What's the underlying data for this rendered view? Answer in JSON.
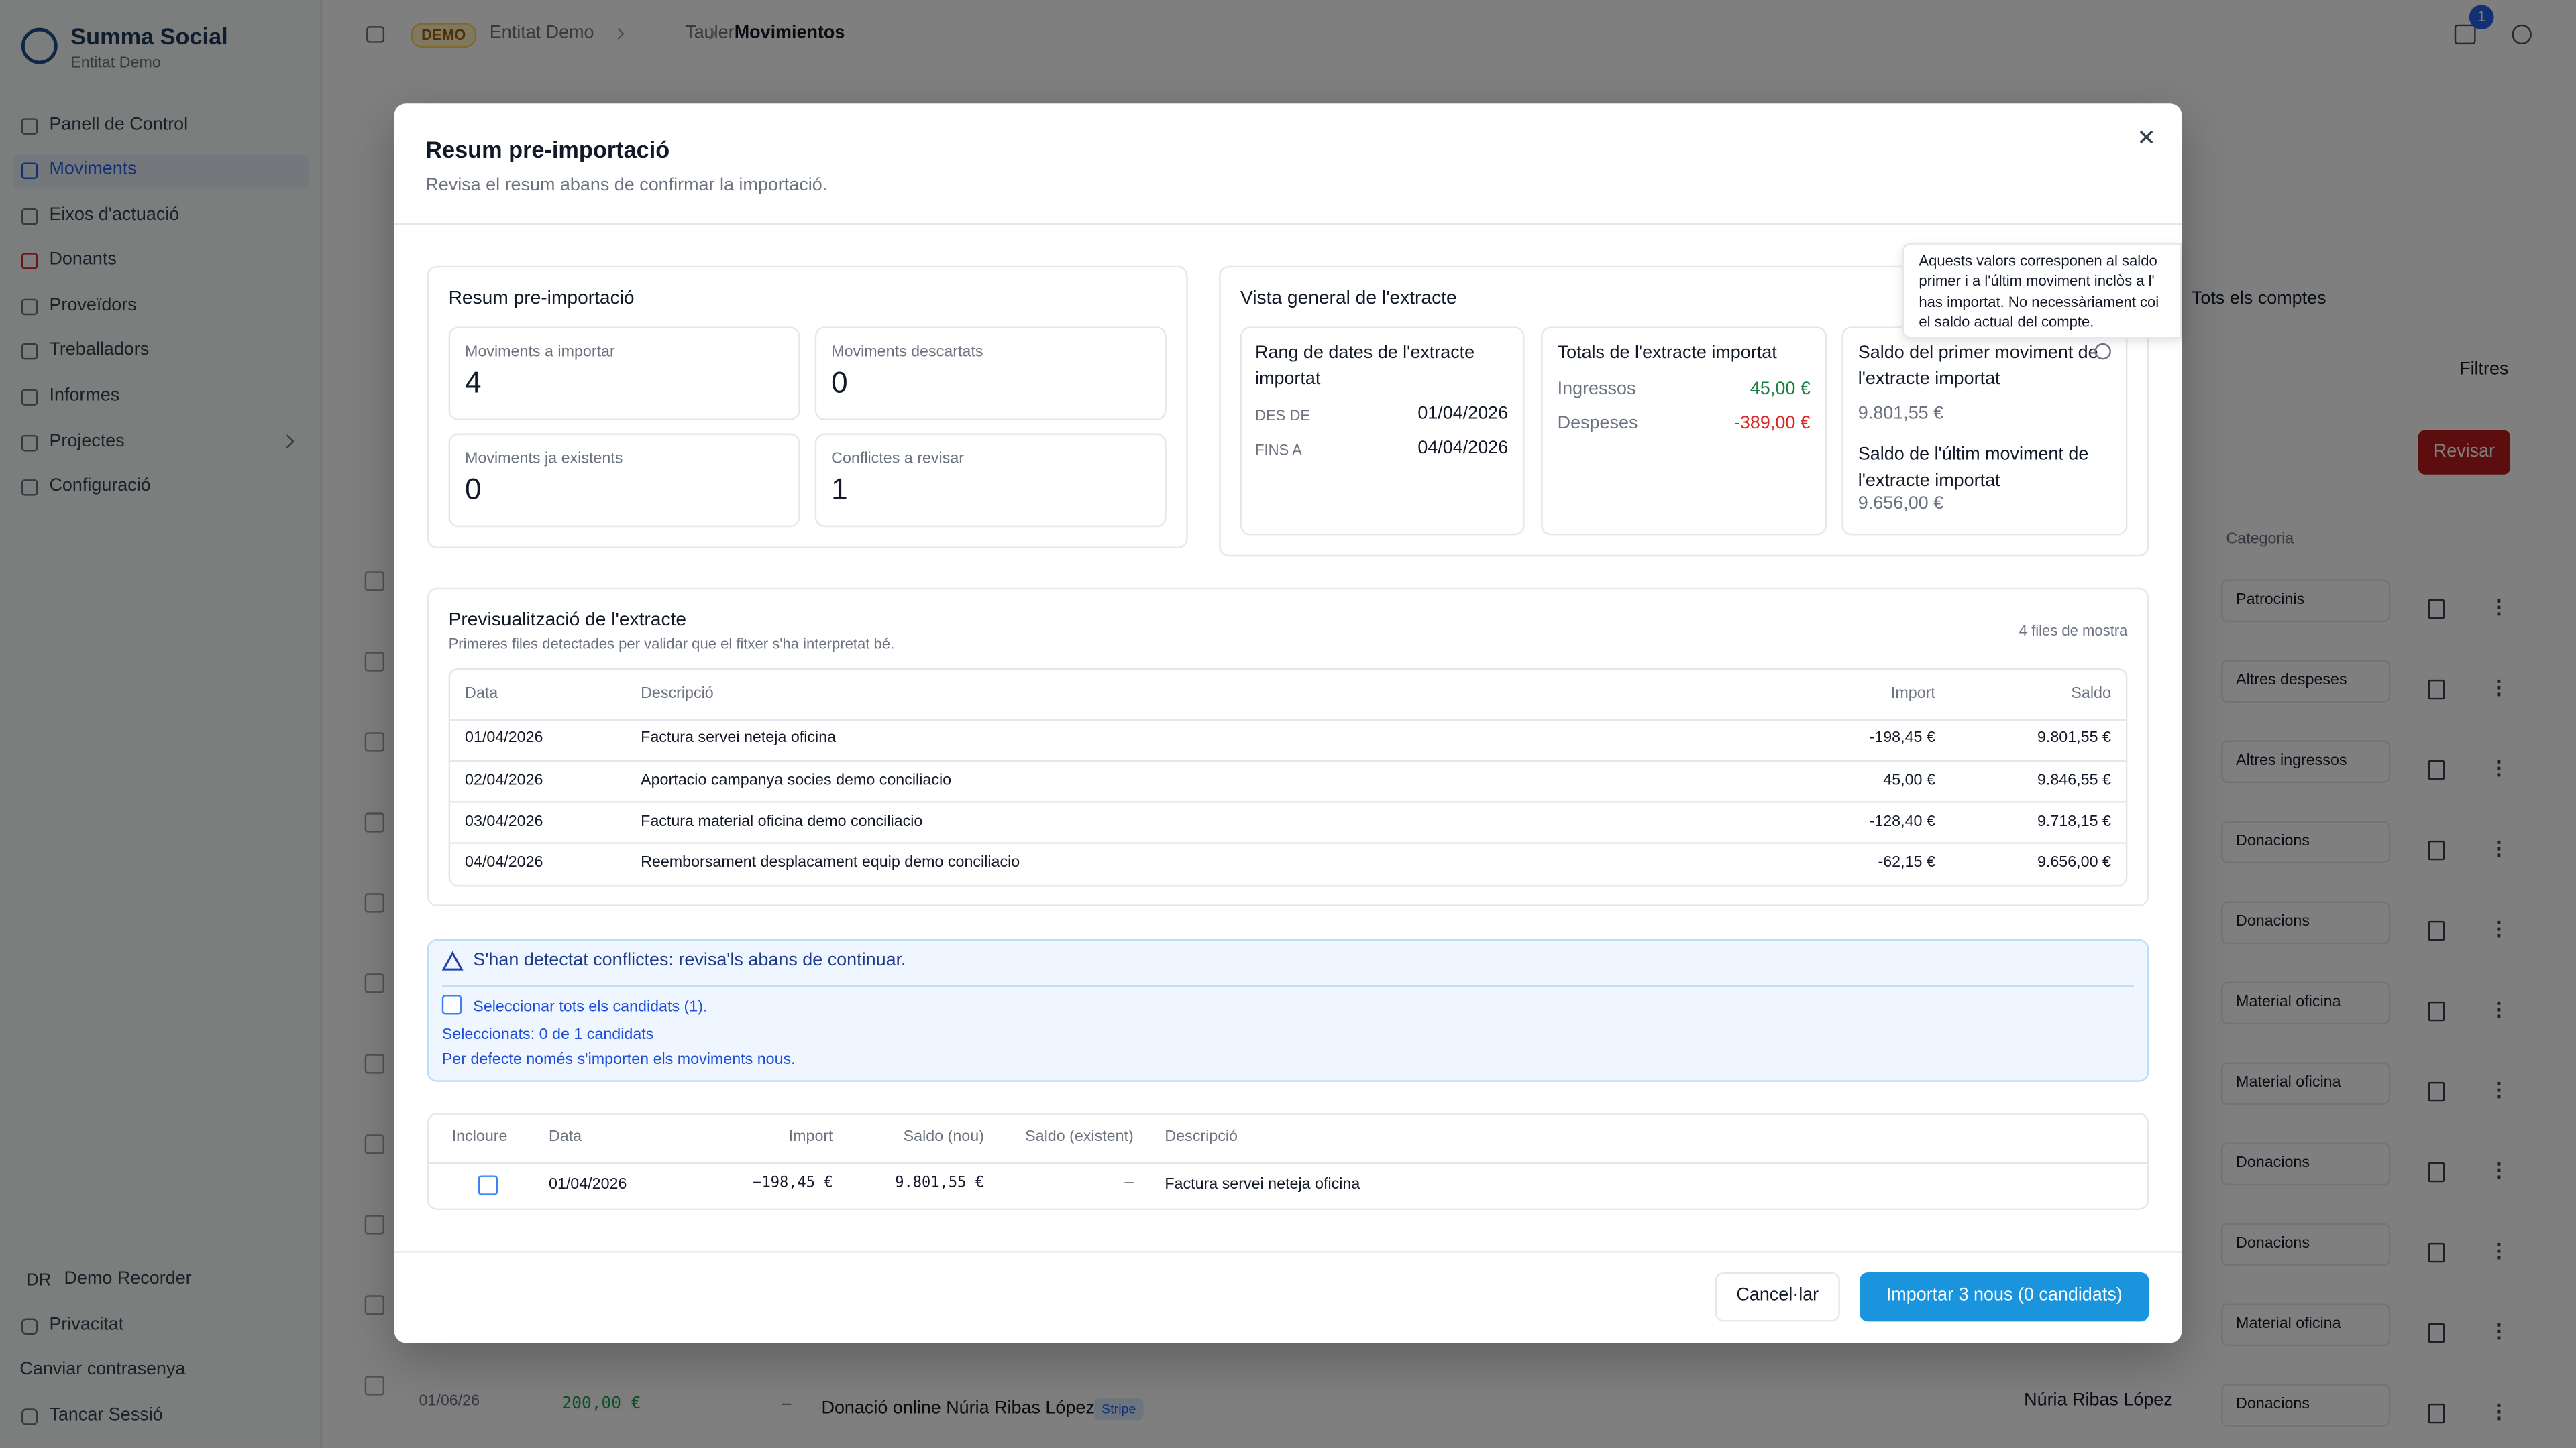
{
  "sidebar": {
    "brand": "Summa Social",
    "entity": "Entitat Demo",
    "nav": [
      "Panell de Control",
      "Moviments",
      "Eixos d'actuació",
      "Donants",
      "Proveïdors",
      "Treballadors",
      "Informes",
      "Projectes",
      "Configuració"
    ],
    "user_initials": "DR",
    "user_name": "Demo Recorder",
    "footer": [
      "Privacitat",
      "Canviar contrasenya",
      "Tancar Sessió"
    ]
  },
  "topbar": {
    "badge": "DEMO",
    "breadcrumb": [
      "Entitat Demo",
      "Tauler",
      "Movimientos"
    ],
    "notifications": "1"
  },
  "background": {
    "account_filter": "Tots els comptes",
    "filters": "Filtres",
    "review": "Revisar",
    "category_header": "Categoria",
    "categories": [
      "Patrocinis",
      "Altres despeses",
      "Altres ingressos",
      "Donacions",
      "Donacions",
      "Material oficina",
      "Material oficina",
      "Donacions",
      "Donacions",
      "Material oficina",
      "Donacions"
    ],
    "last_row": {
      "date": "01/06/26",
      "amount": "200,00 €",
      "dash": "–",
      "description": "Donació online Núria Ribas López",
      "source": "Stripe",
      "donor": "Núria Ribas López"
    }
  },
  "modal": {
    "title": "Resum pre-importació",
    "subtitle": "Revisa el resum abans de confirmar la importació.",
    "summary": {
      "title": "Resum pre-importació",
      "stats": [
        {
          "label": "Moviments a importar",
          "value": 4
        },
        {
          "label": "Moviments descartats",
          "value": 0
        },
        {
          "label": "Moviments ja existents",
          "value": 0
        },
        {
          "label": "Conflictes a revisar",
          "value": 1
        }
      ]
    },
    "overview": {
      "title": "Vista general de l'extracte",
      "date_range": {
        "title": "Rang de dates de l'extracte importat",
        "from_label": "DES DE",
        "from": "01/04/2026",
        "to_label": "FINS A",
        "to": "04/04/2026"
      },
      "totals": {
        "title": "Totals de l'extracte importat",
        "income_label": "Ingressos",
        "income": "45,00 €",
        "expense_label": "Despeses",
        "expense": "-389,00 €"
      },
      "balances": {
        "first_label": "Saldo del primer moviment de l'extracte importat",
        "first": "9.801,55 €",
        "last_label": "Saldo de l'últim moviment de l'extracte importat",
        "last": "9.656,00 €"
      },
      "tooltip": [
        "Aquests valors corresponen al saldo",
        "primer i a l'últim moviment inclòs a l'",
        "has importat. No necessàriament coi",
        "el saldo actual del compte."
      ]
    },
    "preview": {
      "title": "Previsualització de l'extracte",
      "subtitle": "Primeres files detectades per validar que el fitxer s'ha interpretat bé.",
      "count": "4 files de mostra",
      "columns": [
        "Data",
        "Descripció",
        "Import",
        "Saldo"
      ],
      "rows": [
        [
          "01/04/2026",
          "Factura servei neteja oficina",
          "-198,45 €",
          "9.801,55 €"
        ],
        [
          "02/04/2026",
          "Aportacio campanya socies demo conciliacio",
          "45,00 €",
          "9.846,55 €"
        ],
        [
          "03/04/2026",
          "Factura material oficina demo conciliacio",
          "-128,40 €",
          "9.718,15 €"
        ],
        [
          "04/04/2026",
          "Reemborsament desplacament equip demo conciliacio",
          "-62,15 €",
          "9.656,00 €"
        ]
      ]
    },
    "conflicts": {
      "message": "S'han detectat conflictes: revisa'ls abans de continuar.",
      "select_all": "Seleccionar tots els candidats (1).",
      "selected": "Seleccionats: 0 de 1 candidats",
      "note": "Per defecte només s'importen els moviments nous."
    },
    "candidates": {
      "columns": [
        "Incloure",
        "Data",
        "Import",
        "Saldo (nou)",
        "Saldo (existent)",
        "Descripció"
      ],
      "rows": [
        [
          "01/04/2026",
          "−198,45 €",
          "9.801,55 €",
          "–",
          "Factura servei neteja oficina"
        ]
      ]
    },
    "buttons": {
      "cancel": "Cancel·lar",
      "import": "Importar 3 nous (0 candidats)"
    }
  }
}
